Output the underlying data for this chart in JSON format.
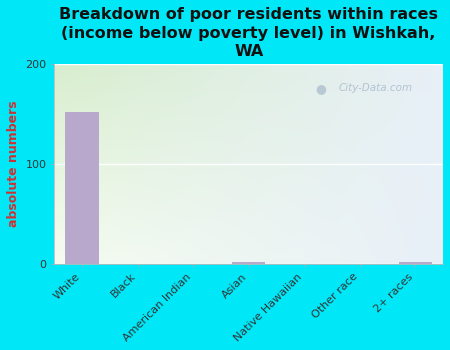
{
  "title": "Breakdown of poor residents within races\n(income below poverty level) in Wishkah,\nWA",
  "categories": [
    "White",
    "Black",
    "American Indian",
    "Asian",
    "Native Hawaiian",
    "Other race",
    "2+ races"
  ],
  "values": [
    152,
    0,
    0,
    2,
    0,
    0,
    2
  ],
  "bar_color": "#b8a8cc",
  "ylabel": "absolute numbers",
  "ylim": [
    0,
    200
  ],
  "yticks": [
    0,
    100,
    200
  ],
  "background_outer": "#00e8f8",
  "bg_color_top": "#d8eece",
  "bg_color_bottom": "#f5fcf0",
  "bg_color_right": "#e8f0f8",
  "watermark_text": "City-Data.com",
  "title_fontsize": 11.5,
  "ylabel_fontsize": 9,
  "tick_fontsize": 8
}
